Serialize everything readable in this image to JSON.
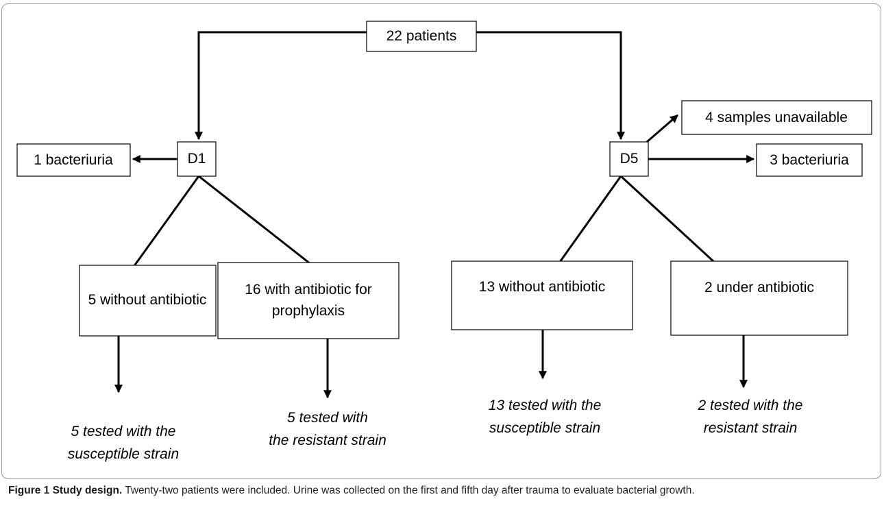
{
  "nodes": [
    {
      "lines": [
        "22 patients"
      ]
    },
    {
      "lines": [
        "4 samples unavailable"
      ]
    },
    {
      "lines": [
        "1 bacteriuria"
      ]
    },
    {
      "lines": [
        "D1"
      ]
    },
    {
      "lines": [
        "D5"
      ]
    },
    {
      "lines": [
        "3 bacteriuria"
      ]
    },
    {
      "lines": [
        "5 without antibiotic"
      ]
    },
    {
      "lines": [
        "16 with antibiotic for",
        "prophylaxis"
      ]
    },
    {
      "lines": [
        "13 without antibiotic"
      ]
    },
    {
      "lines": [
        "2 under antibiotic"
      ]
    }
  ],
  "outcomes": [
    {
      "lines": [
        "5 tested with the",
        "susceptible strain"
      ]
    },
    {
      "lines": [
        "5 tested with",
        "the resistant strain"
      ]
    },
    {
      "lines": [
        "13 tested with the",
        "susceptible strain"
      ]
    },
    {
      "lines": [
        "2 tested with the",
        "resistant strain"
      ]
    }
  ],
  "caption": {
    "label": "Figure 1 Study design.",
    "text": "Twenty-two patients were included. Urine was collected on the first and fifth day after trauma to evaluate bacterial growth."
  }
}
